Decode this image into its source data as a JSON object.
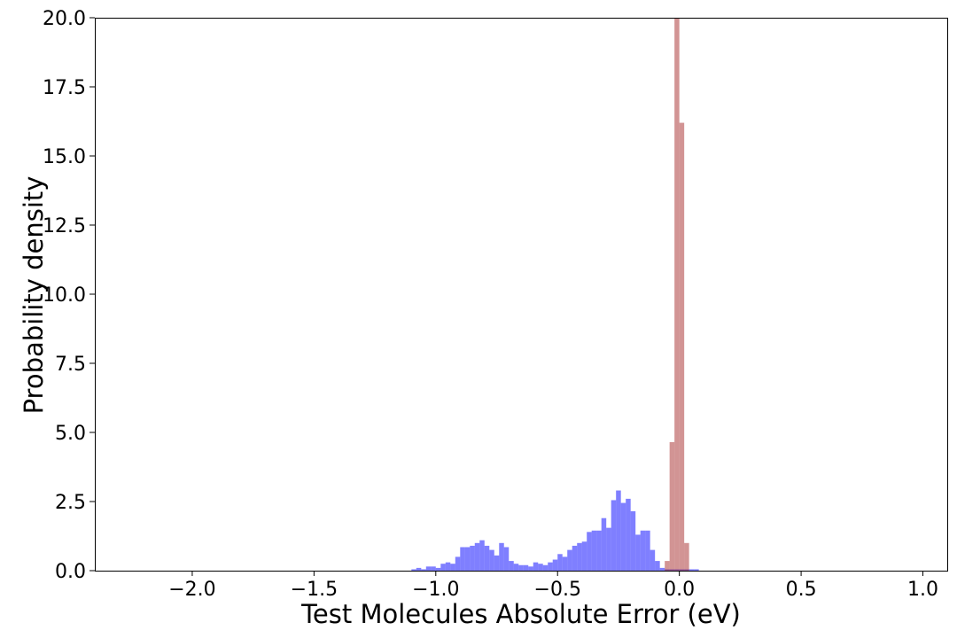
{
  "chart_data": {
    "type": "histogram",
    "xlabel": "Test Molecules Absolute Error (eV)",
    "ylabel": "Probability density",
    "xlim": [
      -2.4,
      1.1
    ],
    "ylim": [
      0,
      20
    ],
    "x_ticks": [
      -2.0,
      -1.5,
      -1.0,
      -0.5,
      0.0,
      0.5,
      1.0
    ],
    "x_tick_labels": [
      "−2.0",
      "−1.5",
      "−1.0",
      "−0.5",
      "0.0",
      "0.5",
      "1.0"
    ],
    "y_ticks": [
      0,
      2.5,
      5,
      7.5,
      10,
      12.5,
      15,
      17.5,
      20
    ],
    "y_tick_labels": [
      "0.0",
      "2.5",
      "5.0",
      "7.5",
      "10.0",
      "12.5",
      "15.0",
      "17.5",
      "20.0"
    ],
    "grid": false,
    "series": [
      {
        "color": "#0000ff",
        "opacity": 0.5,
        "bin_width": 0.02,
        "bin_starts": [
          -1.1,
          -1.08,
          -1.06,
          -1.04,
          -1.02,
          -1.0,
          -0.98,
          -0.96,
          -0.94,
          -0.92,
          -0.9,
          -0.88,
          -0.86,
          -0.84,
          -0.82,
          -0.8,
          -0.78,
          -0.76,
          -0.74,
          -0.72,
          -0.7,
          -0.68,
          -0.66,
          -0.64,
          -0.62,
          -0.6,
          -0.58,
          -0.56,
          -0.54,
          -0.52,
          -0.5,
          -0.48,
          -0.46,
          -0.44,
          -0.42,
          -0.4,
          -0.38,
          -0.36,
          -0.34,
          -0.32,
          -0.3,
          -0.28,
          -0.26,
          -0.24,
          -0.22,
          -0.2,
          -0.18,
          -0.16,
          -0.14,
          -0.12,
          -0.1,
          -0.08,
          -0.06,
          -0.04,
          -0.02,
          0.0,
          0.02,
          0.04,
          0.06
        ],
        "values": [
          0.05,
          0.1,
          0.05,
          0.15,
          0.15,
          0.1,
          0.25,
          0.3,
          0.25,
          0.5,
          0.85,
          0.85,
          0.9,
          1.0,
          1.1,
          0.9,
          0.75,
          0.55,
          1.0,
          0.85,
          0.35,
          0.25,
          0.2,
          0.2,
          0.15,
          0.3,
          0.25,
          0.2,
          0.3,
          0.4,
          0.6,
          0.5,
          0.75,
          0.9,
          1.0,
          1.05,
          1.4,
          1.45,
          1.45,
          1.9,
          1.55,
          2.55,
          2.9,
          2.45,
          2.6,
          2.15,
          1.3,
          1.45,
          1.45,
          0.75,
          0.35,
          0.1,
          0.05,
          0.05,
          0.05,
          0.05,
          0.05,
          0.05,
          0.05
        ]
      },
      {
        "color": "#a52a2a",
        "opacity": 0.5,
        "bin_width": 0.02,
        "bin_starts": [
          -0.06,
          -0.04,
          -0.02,
          0.0,
          0.02
        ],
        "values": [
          0.35,
          4.65,
          20.5,
          16.2,
          1.0
        ]
      }
    ]
  }
}
